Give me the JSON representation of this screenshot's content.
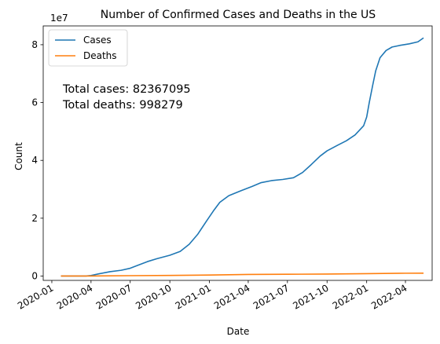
{
  "chart_data": {
    "type": "line",
    "title": "Number of Confirmed Cases and Deaths in the US",
    "xlabel": "Date",
    "ylabel": "Count",
    "y_offset_label": "1e7",
    "xlim": [
      "2019-12-12",
      "2022-06-02"
    ],
    "ylim": [
      -1500000,
      86500000
    ],
    "x_ticks": [
      {
        "date": "2020-01-01",
        "label": "2020-01"
      },
      {
        "date": "2020-04-01",
        "label": "2020-04"
      },
      {
        "date": "2020-07-01",
        "label": "2020-07"
      },
      {
        "date": "2020-10-01",
        "label": "2020-10"
      },
      {
        "date": "2021-01-01",
        "label": "2021-01"
      },
      {
        "date": "2021-04-01",
        "label": "2021-04"
      },
      {
        "date": "2021-07-01",
        "label": "2021-07"
      },
      {
        "date": "2021-10-01",
        "label": "2021-10"
      },
      {
        "date": "2022-01-01",
        "label": "2022-01"
      },
      {
        "date": "2022-04-01",
        "label": "2022-04"
      }
    ],
    "y_ticks": [
      {
        "value": 0,
        "label": "0"
      },
      {
        "value": 20000000,
        "label": "2"
      },
      {
        "value": 40000000,
        "label": "4"
      },
      {
        "value": 60000000,
        "label": "6"
      },
      {
        "value": 80000000,
        "label": "8"
      }
    ],
    "legend": {
      "placement": "top-left"
    },
    "annotations": [
      "Total cases: 82367095",
      "Total deaths: 998279"
    ],
    "series": [
      {
        "name": "Cases",
        "color": "#1f77b4",
        "points": [
          [
            "2020-01-22",
            0
          ],
          [
            "2020-03-01",
            100
          ],
          [
            "2020-03-20",
            20000
          ],
          [
            "2020-04-01",
            200000
          ],
          [
            "2020-04-20",
            800000
          ],
          [
            "2020-05-15",
            1500000
          ],
          [
            "2020-06-10",
            2000000
          ],
          [
            "2020-07-01",
            2700000
          ],
          [
            "2020-07-20",
            3800000
          ],
          [
            "2020-08-10",
            5000000
          ],
          [
            "2020-09-01",
            6000000
          ],
          [
            "2020-10-01",
            7200000
          ],
          [
            "2020-10-25",
            8500000
          ],
          [
            "2020-11-15",
            11000000
          ],
          [
            "2020-12-05",
            14500000
          ],
          [
            "2020-12-25",
            19000000
          ],
          [
            "2021-01-10",
            22500000
          ],
          [
            "2021-01-25",
            25500000
          ],
          [
            "2021-02-15",
            27800000
          ],
          [
            "2021-03-15",
            29500000
          ],
          [
            "2021-04-10",
            31000000
          ],
          [
            "2021-05-01",
            32300000
          ],
          [
            "2021-05-25",
            33000000
          ],
          [
            "2021-06-20",
            33400000
          ],
          [
            "2021-07-15",
            34000000
          ],
          [
            "2021-08-05",
            35800000
          ],
          [
            "2021-08-25",
            38500000
          ],
          [
            "2021-09-15",
            41500000
          ],
          [
            "2021-10-01",
            43300000
          ],
          [
            "2021-10-25",
            45200000
          ],
          [
            "2021-11-15",
            46800000
          ],
          [
            "2021-12-05",
            48800000
          ],
          [
            "2021-12-25",
            52000000
          ],
          [
            "2022-01-01",
            55000000
          ],
          [
            "2022-01-07",
            60000000
          ],
          [
            "2022-01-15",
            66000000
          ],
          [
            "2022-01-22",
            71000000
          ],
          [
            "2022-02-01",
            75500000
          ],
          [
            "2022-02-15",
            78000000
          ],
          [
            "2022-03-01",
            79200000
          ],
          [
            "2022-03-20",
            79800000
          ],
          [
            "2022-04-10",
            80300000
          ],
          [
            "2022-04-30",
            81000000
          ],
          [
            "2022-05-13",
            82367095
          ]
        ]
      },
      {
        "name": "Deaths",
        "color": "#ff7f0e",
        "points": [
          [
            "2020-01-22",
            0
          ],
          [
            "2020-04-01",
            5000
          ],
          [
            "2020-07-01",
            130000
          ],
          [
            "2020-10-01",
            210000
          ],
          [
            "2021-01-01",
            350000
          ],
          [
            "2021-04-01",
            550000
          ],
          [
            "2021-07-01",
            610000
          ],
          [
            "2021-10-01",
            700000
          ],
          [
            "2022-01-01",
            820000
          ],
          [
            "2022-04-01",
            980000
          ],
          [
            "2022-05-13",
            998279
          ]
        ]
      }
    ]
  }
}
